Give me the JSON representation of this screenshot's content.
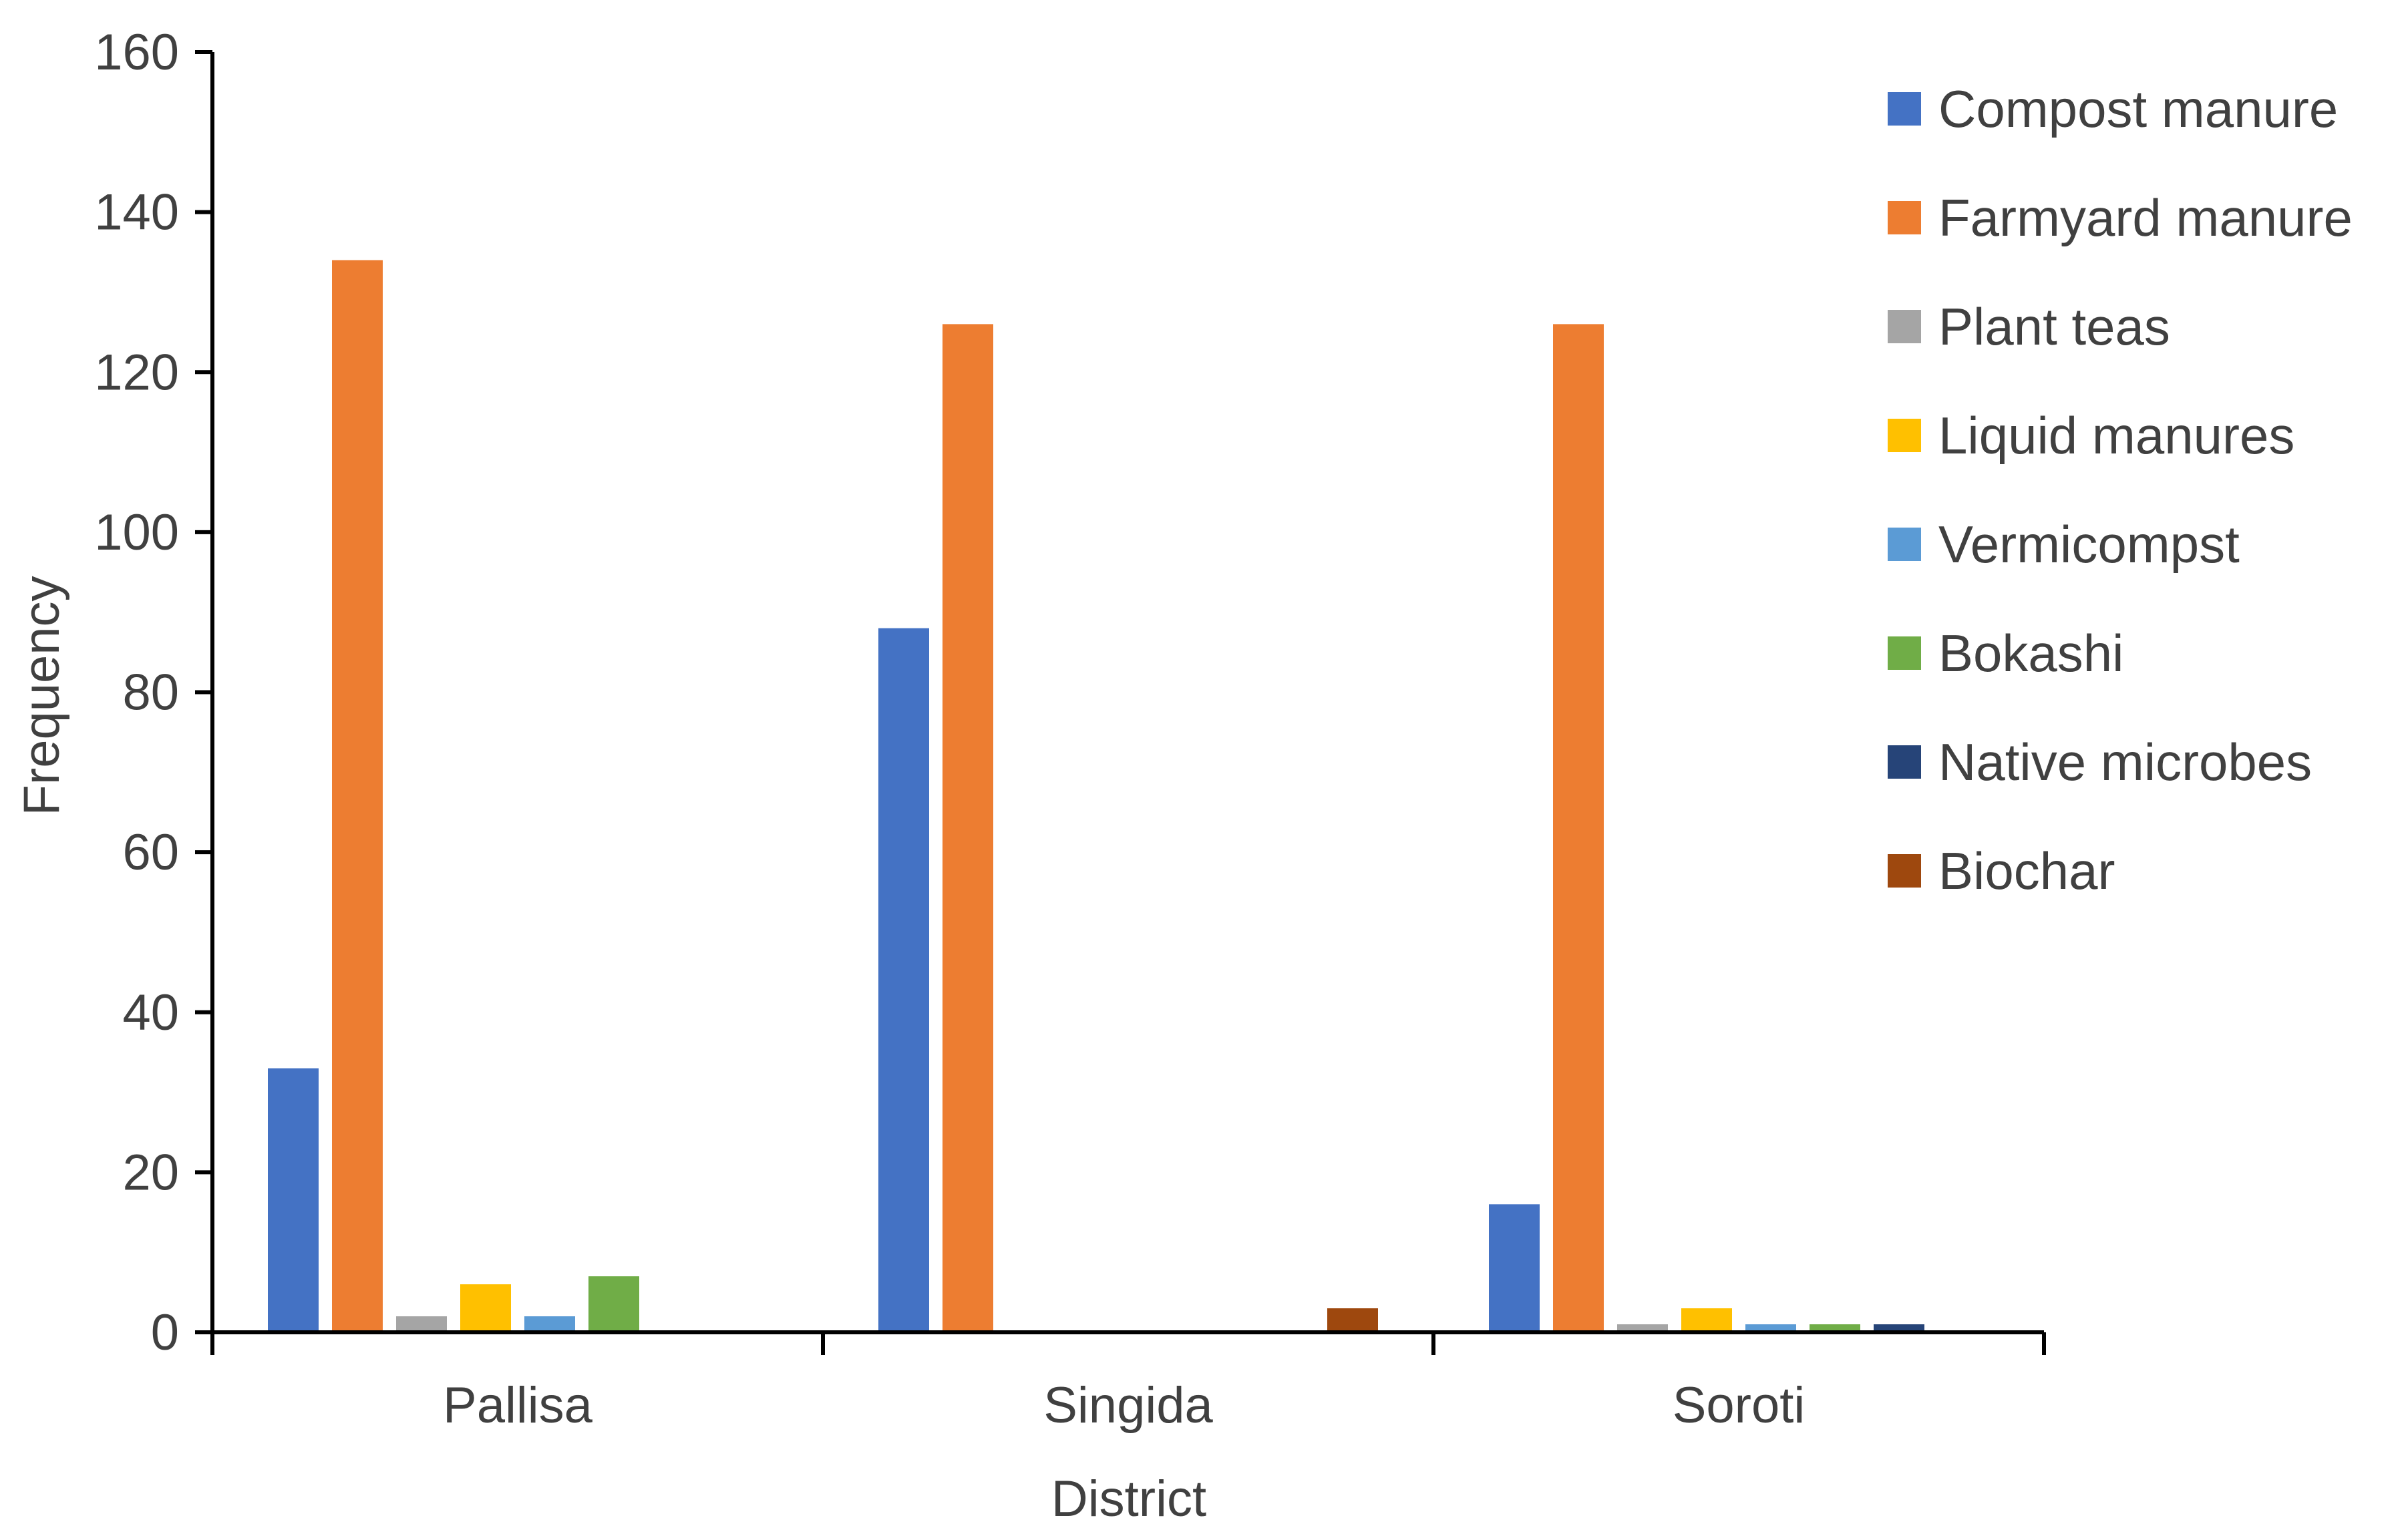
{
  "chart_data": {
    "type": "bar",
    "xlabel": "District",
    "ylabel": "Frequency",
    "ylim": [
      0,
      160
    ],
    "yticks": [
      0,
      20,
      40,
      60,
      80,
      100,
      120,
      140,
      160
    ],
    "grid": false,
    "legend_position": "right",
    "categories": [
      "Pallisa",
      "Singida",
      "Soroti"
    ],
    "series": [
      {
        "name": "Compost manure",
        "color": "#4472C4",
        "values": [
          33,
          88,
          16
        ]
      },
      {
        "name": "Farmyard manure",
        "color": "#ED7D31",
        "values": [
          134,
          126,
          126
        ]
      },
      {
        "name": "Plant teas",
        "color": "#A5A5A5",
        "values": [
          2,
          0,
          1
        ]
      },
      {
        "name": "Liquid manures",
        "color": "#FFC000",
        "values": [
          6,
          0,
          3
        ]
      },
      {
        "name": "Vermicompst",
        "color": "#5B9BD5",
        "values": [
          2,
          0,
          1
        ]
      },
      {
        "name": "Bokashi",
        "color": "#70AD47",
        "values": [
          7,
          0,
          1
        ]
      },
      {
        "name": "Native microbes",
        "color": "#264478",
        "values": [
          0,
          0,
          1
        ]
      },
      {
        "name": "Biochar",
        "color": "#9E480E",
        "values": [
          0,
          3,
          0
        ]
      }
    ]
  }
}
